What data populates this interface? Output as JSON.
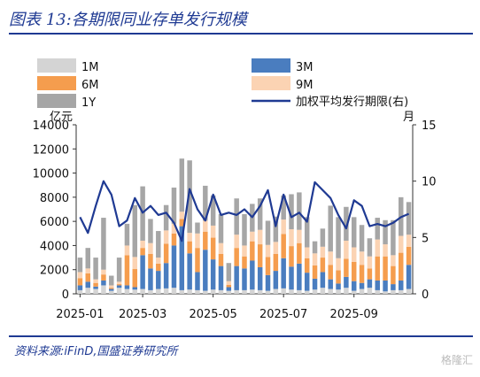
{
  "header": {
    "title": "图表 13:各期限同业存单发行规模"
  },
  "footer": {
    "source": "资料来源:iFinD,国盛证券研究所",
    "watermark": "格隆汇"
  },
  "colors": {
    "1M": "#d4d4d4",
    "3M": "#4a7dbf",
    "6M": "#f59d4e",
    "9M": "#fbd3b3",
    "1Y": "#a6a6a6",
    "line": "#1f3a93"
  },
  "chart_data": {
    "type": "bar",
    "stacked": true,
    "left_unit": "亿元",
    "right_unit": "月",
    "ylim_left": [
      0,
      14000
    ],
    "ylim_right": [
      0,
      15
    ],
    "y_ticks_left": [
      "0",
      "2000",
      "4000",
      "6000",
      "8000",
      "10000",
      "12000",
      "14000"
    ],
    "y_ticks_right": [
      "0",
      "5",
      "10",
      "15"
    ],
    "x_tick_labels": [
      "2025-01",
      "2025-03",
      "2025-05",
      "2025-07",
      "2025-09"
    ],
    "x_tick_positions": [
      0,
      8,
      17,
      26,
      35
    ],
    "legend": [
      "1M",
      "3M",
      "6M",
      "9M",
      "1Y",
      "加权平均发行期限(右)"
    ],
    "series": [
      {
        "name": "1M",
        "values": [
          300,
          500,
          400,
          700,
          250,
          500,
          400,
          350,
          400,
          300,
          400,
          450,
          500,
          300,
          350,
          300,
          250,
          350,
          300,
          250,
          300,
          300,
          350,
          300,
          250,
          400,
          450,
          350,
          300,
          250,
          350,
          500,
          400,
          350,
          500,
          250,
          400,
          500,
          300,
          200,
          300,
          300,
          400
        ]
      },
      {
        "name": "3M",
        "values": [
          400,
          500,
          200,
          400,
          150,
          200,
          300,
          200,
          2800,
          1800,
          1500,
          2100,
          3500,
          5300,
          3000,
          1500,
          3400,
          2500,
          2000,
          300,
          2000,
          1800,
          2400,
          1900,
          1300,
          1500,
          2500,
          1900,
          2200,
          1500,
          900,
          1300,
          800,
          500,
          900,
          800,
          500,
          700,
          800,
          900,
          500,
          800,
          2000
        ]
      },
      {
        "name": "6M",
        "values": [
          600,
          700,
          300,
          500,
          100,
          100,
          2500,
          1500,
          600,
          1200,
          600,
          1600,
          1000,
          600,
          1000,
          2000,
          1500,
          1800,
          1000,
          200,
          1500,
          1000,
          1600,
          1900,
          1500,
          1400,
          2000,
          1700,
          1700,
          1200,
          1100,
          1200,
          1200,
          1100,
          1500,
          1600,
          1500,
          900,
          2000,
          2000,
          1500,
          2300,
          1500
        ]
      },
      {
        "name": "9M",
        "values": [
          500,
          400,
          300,
          400,
          200,
          200,
          800,
          1000,
          600,
          900,
          500,
          1100,
          800,
          600,
          700,
          1200,
          900,
          1000,
          900,
          300,
          1100,
          900,
          800,
          1200,
          1000,
          1000,
          1200,
          1400,
          1100,
          900,
          1000,
          900,
          1100,
          1000,
          1500,
          1200,
          1100,
          1000,
          1400,
          1000,
          900,
          1400,
          1000
        ]
      },
      {
        "name": "1Y",
        "values": [
          1200,
          1700,
          1800,
          4300,
          800,
          2000,
          1800,
          4300,
          4500,
          2000,
          2200,
          2100,
          3000,
          4400,
          6000,
          900,
          2900,
          2500,
          2400,
          1500,
          3000,
          2600,
          2300,
          2600,
          2000,
          2100,
          2000,
          2900,
          3100,
          2500,
          1000,
          1500,
          3800,
          3400,
          2800,
          2500,
          2200,
          1500,
          1800,
          2000,
          2900,
          3200,
          2700
        ]
      },
      {
        "name": "加权平均发行期限(右)",
        "axis": "right",
        "values": [
          6.8,
          5.4,
          7.8,
          10.0,
          8.8,
          6.0,
          6.5,
          8.5,
          7.2,
          7.8,
          7.0,
          7.2,
          6.3,
          4.7,
          9.3,
          7.5,
          6.5,
          8.8,
          7.0,
          7.2,
          7.0,
          7.5,
          6.8,
          7.8,
          9.2,
          6.0,
          8.8,
          6.8,
          7.2,
          6.4,
          9.9,
          9.2,
          8.5,
          7.0,
          5.8,
          8.3,
          7.8,
          6.0,
          6.2,
          6.0,
          6.3,
          6.8,
          7.1
        ]
      }
    ]
  }
}
